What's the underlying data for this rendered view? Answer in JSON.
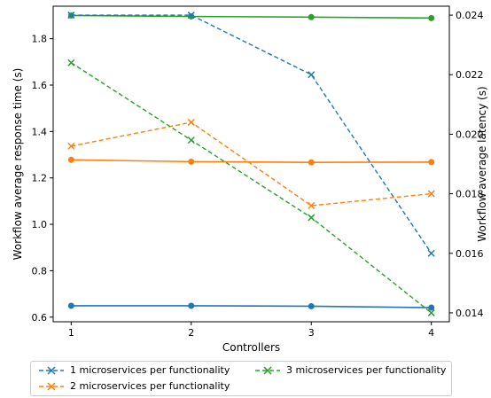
{
  "chart_data": {
    "type": "line",
    "x": [
      1,
      2,
      3,
      4
    ],
    "xlabel": "Controllers",
    "ylabel_left": "Workflow average response time (s)",
    "ylabel_right": "Workflow average latency (s)",
    "ylim_left": [
      0.58,
      1.94
    ],
    "ylim_right": [
      0.0137,
      0.0243
    ],
    "xlim": [
      0.85,
      4.15
    ],
    "xticks": [
      "1",
      "2",
      "3",
      "4"
    ],
    "yticks_left": [
      "0.6",
      "0.8",
      "1.0",
      "1.2",
      "1.4",
      "1.6",
      "1.8"
    ],
    "yticks_right": [
      "0.014",
      "0.016",
      "0.018",
      "0.020",
      "0.022",
      "0.024"
    ],
    "colors": {
      "blue": "#1f77b4",
      "orange": "#ff7f0e",
      "green": "#2ca02c"
    },
    "response_time_series": [
      {
        "color": "blue",
        "values": [
          0.649,
          0.649,
          0.647,
          0.641
        ]
      },
      {
        "color": "orange",
        "values": [
          1.278,
          1.27,
          1.267,
          1.268
        ]
      },
      {
        "color": "green",
        "values": [
          1.9,
          1.896,
          1.893,
          1.889
        ]
      }
    ],
    "latency_series": [
      {
        "name": "1 microservices per functionality",
        "color": "blue",
        "values": [
          0.024,
          0.024,
          0.022,
          0.016
        ]
      },
      {
        "name": "2 microservices per functionality",
        "color": "orange",
        "values": [
          0.0196,
          0.0204,
          0.0176,
          0.018
        ]
      },
      {
        "name": "3 microservices per functionality",
        "color": "green",
        "values": [
          0.0224,
          0.0198,
          0.0172,
          0.014
        ]
      }
    ],
    "legend_placement": "bottom"
  }
}
